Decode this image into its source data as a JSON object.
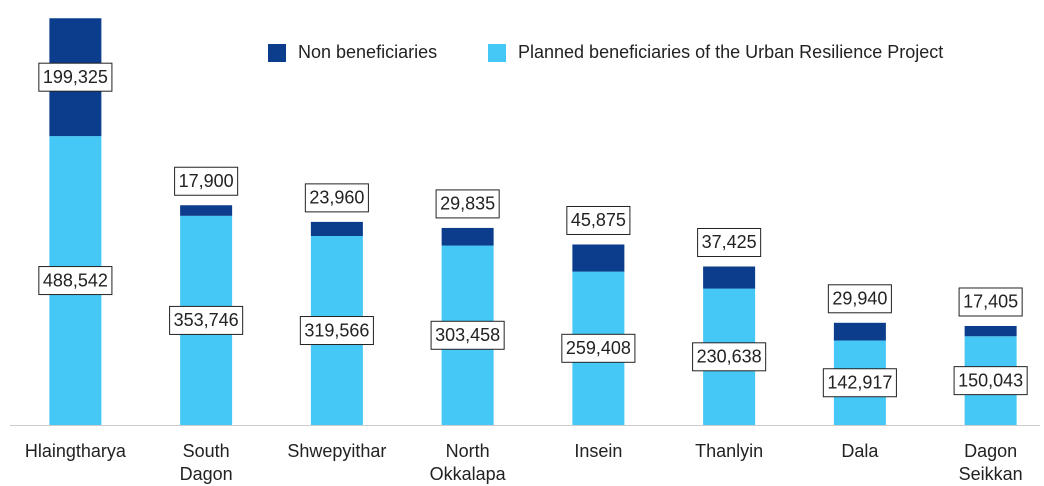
{
  "chart_data": {
    "type": "stacked_bar",
    "categories": [
      "Hlaingtharya",
      [
        "South",
        "Dagon"
      ],
      "Shwepyithar",
      [
        "North",
        "Okkalapa"
      ],
      "Insein",
      "Thanlyin",
      "Dala",
      [
        "Dagon",
        "Seikkan"
      ]
    ],
    "series": [
      {
        "name": "Planned beneficiaries of the Urban Resilience Project",
        "color": "#45c8f5",
        "values": [
          488542,
          353746,
          319566,
          303458,
          259408,
          230638,
          142917,
          150043
        ],
        "value_labels": [
          "488,542",
          "353,746",
          "319,566",
          "303,458",
          "259,408",
          "230,638",
          "142,917",
          "150,043"
        ]
      },
      {
        "name": "Non beneficiaries",
        "color": "#0b3d8c",
        "values": [
          199325,
          17900,
          23960,
          29835,
          45875,
          37425,
          29940,
          17405
        ],
        "value_labels": [
          "199,325",
          "17,900",
          "23,960",
          "29,835",
          "45,875",
          "37,425",
          "29,940",
          "17,405"
        ]
      }
    ],
    "ylim": [
      0,
      690000
    ]
  }
}
